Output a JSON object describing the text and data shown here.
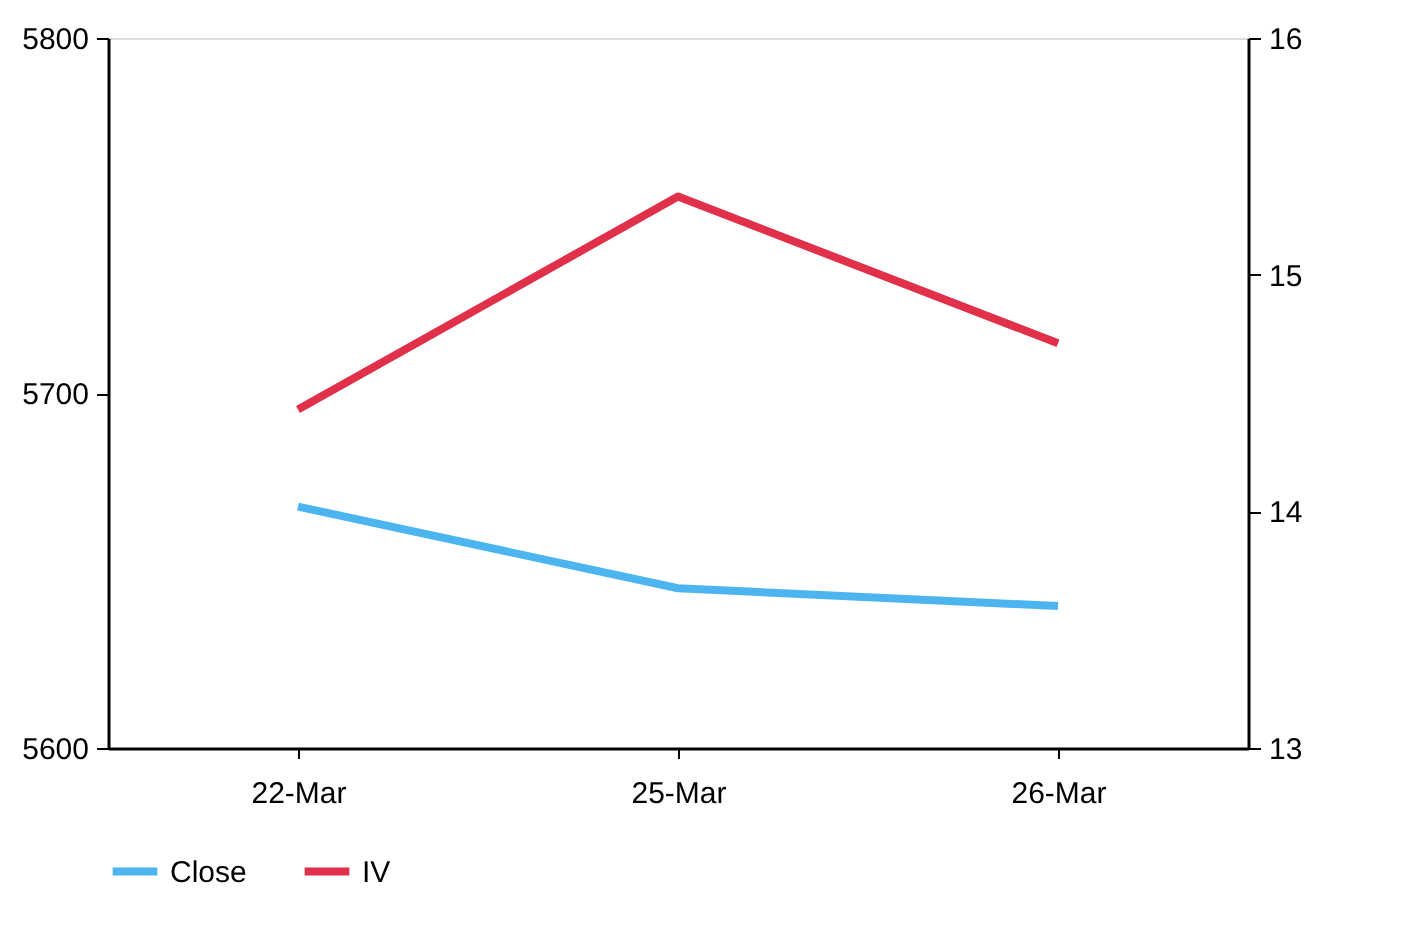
{
  "chart_data": {
    "type": "line",
    "categories": [
      "22-Mar",
      "25-Mar",
      "26-Mar"
    ],
    "series": [
      {
        "name": "Close",
        "color": "#4cb5f0",
        "values": [
          5668,
          5645,
          5640
        ]
      },
      {
        "name": "IV",
        "color": "#e0304a",
        "values": [
          14.43,
          15.33,
          14.71
        ],
        "axis": "y2"
      }
    ],
    "ylim": [
      5600,
      5800
    ],
    "yticks": [
      5600,
      5700,
      5800
    ],
    "y2lim": [
      13,
      16
    ],
    "y2ticks": [
      13,
      14,
      15,
      16
    ],
    "grid": false,
    "legend": "bottom",
    "marker": "none",
    "line_style": "solid"
  }
}
